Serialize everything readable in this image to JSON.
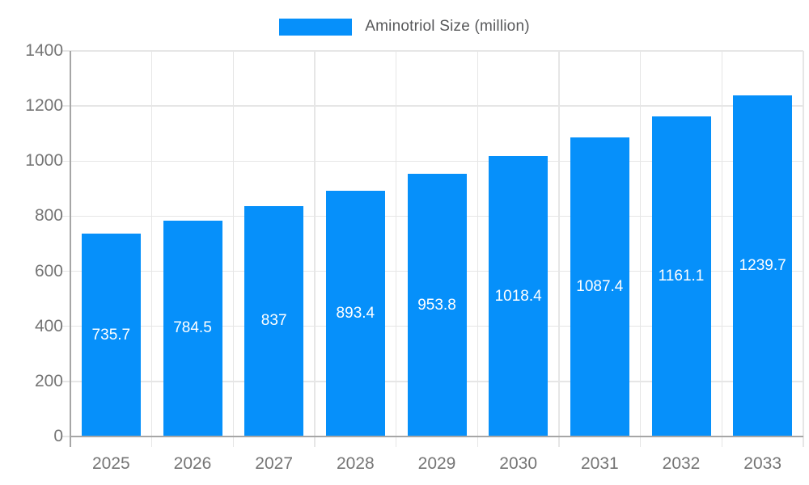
{
  "chart_data": {
    "type": "bar",
    "title": "Aminotriol Size (million)",
    "legend": {
      "label": "Aminotriol Size (million)",
      "position": "top"
    },
    "categories": [
      "2025",
      "2026",
      "2027",
      "2028",
      "2029",
      "2030",
      "2031",
      "2032",
      "2033"
    ],
    "values": [
      735.7,
      784.5,
      837,
      893.4,
      953.8,
      1018.4,
      1087.4,
      1161.1,
      1239.7
    ],
    "value_labels": [
      "735.7",
      "784.5",
      "837",
      "893.4",
      "953.8",
      "1018.4",
      "1087.4",
      "1161.1",
      "1239.7"
    ],
    "xlabel": "",
    "ylabel": "",
    "ylim": [
      0,
      1400
    ],
    "yticks": [
      0,
      200,
      400,
      600,
      800,
      1000,
      1200,
      1400
    ],
    "grid": true,
    "colors": {
      "bar": "#0690fa",
      "value_label": "#ffffff",
      "axis_text": "#757575",
      "legend_text": "#58595b",
      "axis_line": "#a6a6a6",
      "gridline": "#e6e6e6",
      "background": "#ffffff"
    }
  }
}
